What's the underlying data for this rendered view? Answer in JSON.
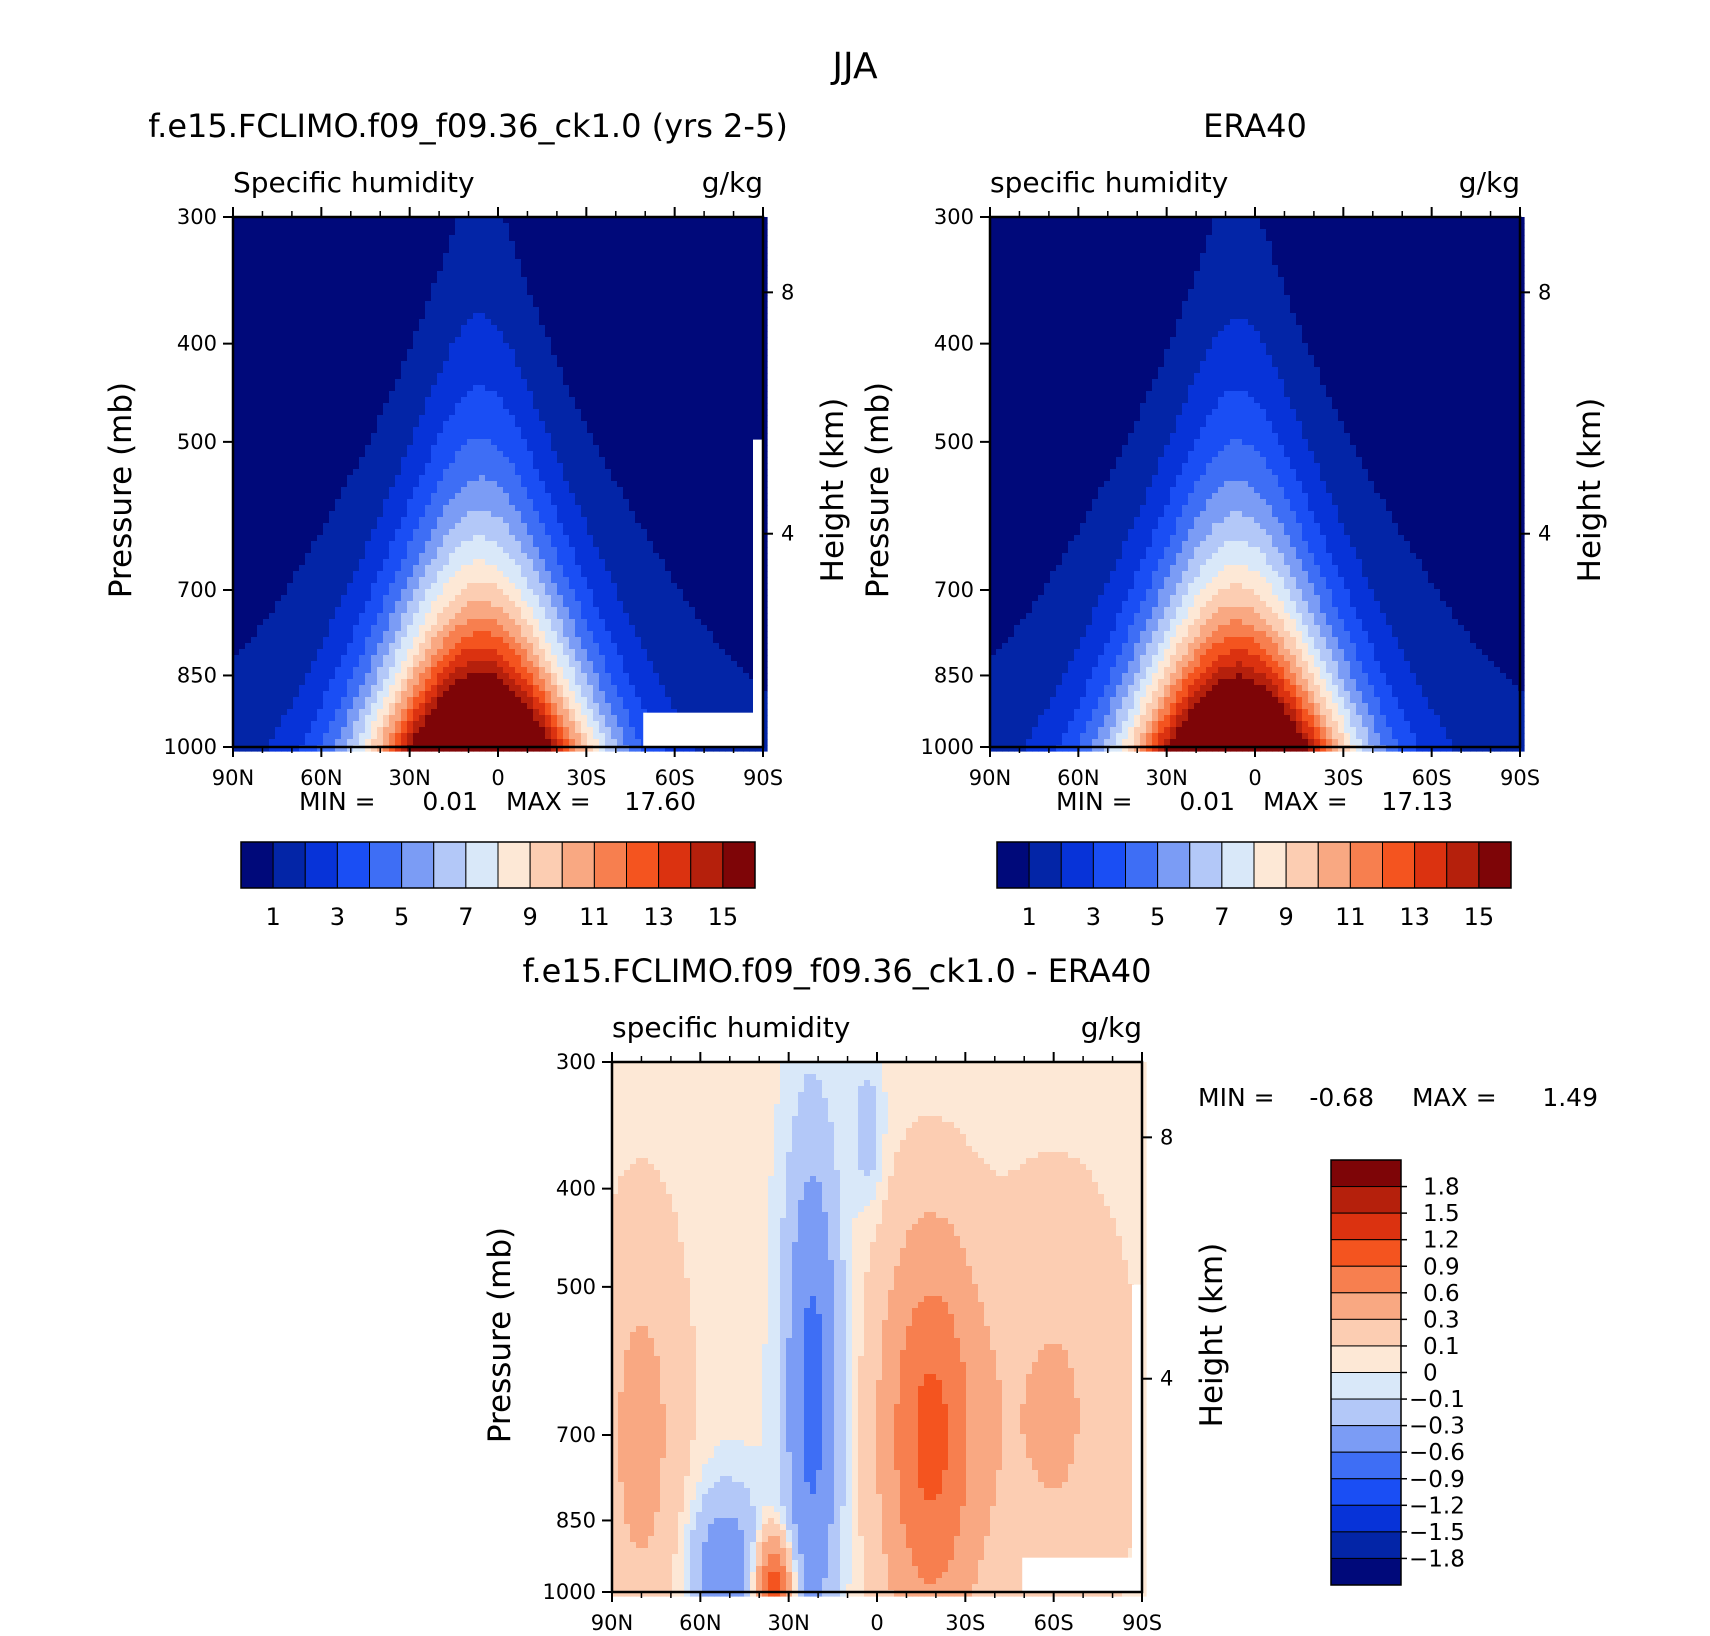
{
  "figure_title": "JJA",
  "palettes": {
    "humidity": [
      "#00097a",
      "#0325a7",
      "#0733d8",
      "#1a4ef4",
      "#3e6ef5",
      "#7b9cf5",
      "#b3c8f8",
      "#d9e8f9",
      "#fde8d6",
      "#fccdb2",
      "#f9a882",
      "#f77f4f",
      "#f4541f",
      "#db3210",
      "#b5200c",
      "#7e0507"
    ],
    "difference": [
      "#00097a",
      "#0325a7",
      "#0733d8",
      "#1a4ef4",
      "#3e6ef5",
      "#7b9cf5",
      "#b3c8f8",
      "#d9e8f9",
      "#fde8d6",
      "#fccdb2",
      "#f9a882",
      "#f77f4f",
      "#f4541f",
      "#db3210",
      "#b5200c",
      "#7e0507"
    ]
  },
  "icons": [
    "colorbar-swatch"
  ],
  "chart_data": [
    {
      "id": "model",
      "type": "contour",
      "title": "f.e15.FCLIMO.f09_f09.36_ck1.0 (yrs 2-5)",
      "left_label": "Specific humidity",
      "right_label": "g/kg",
      "ylabel": "Pressure (mb)",
      "y2label": "Height (km)",
      "x_ticks": [
        "90N",
        "60N",
        "30N",
        "0",
        "30S",
        "60S",
        "90S"
      ],
      "x_range": [
        -90,
        90
      ],
      "y_ticks": [
        "300",
        "400",
        "500",
        "700",
        "850",
        "1000"
      ],
      "y_range_mb": [
        1000,
        300
      ],
      "y2_ticks": [
        "8",
        "4"
      ],
      "stats": {
        "min_label": "MIN =",
        "min": "0.01",
        "max_label": "MAX =",
        "max": "17.60"
      },
      "peak_latitude": 6,
      "peak_value_g_per_kg": 17.6,
      "masked_region": {
        "lat_from": -50,
        "lat_to": -90,
        "pressure_from_mb": 925,
        "pressure_to_mb": 1000
      },
      "colorbar": {
        "orientation": "horizontal",
        "levels": [
          1,
          2,
          3,
          4,
          5,
          6,
          7,
          8,
          9,
          10,
          11,
          12,
          13,
          14,
          15
        ],
        "tick_labels": [
          "1",
          "3",
          "5",
          "7",
          "9",
          "11",
          "13",
          "15"
        ]
      }
    },
    {
      "id": "obs",
      "type": "contour",
      "title": "ERA40",
      "left_label": "specific humidity",
      "right_label": "g/kg",
      "ylabel": "Pressure (mb)",
      "y2label": "Height (km)",
      "x_ticks": [
        "90N",
        "60N",
        "30N",
        "0",
        "30S",
        "60S",
        "90S"
      ],
      "x_range": [
        -90,
        90
      ],
      "y_ticks": [
        "300",
        "400",
        "500",
        "700",
        "850",
        "1000"
      ],
      "y_range_mb": [
        1000,
        300
      ],
      "y2_ticks": [
        "8",
        "4"
      ],
      "stats": {
        "min_label": "MIN =",
        "min": "0.01",
        "max_label": "MAX =",
        "max": "17.13"
      },
      "peak_latitude": 6,
      "peak_value_g_per_kg": 17.13,
      "colorbar": {
        "orientation": "horizontal",
        "levels": [
          1,
          2,
          3,
          4,
          5,
          6,
          7,
          8,
          9,
          10,
          11,
          12,
          13,
          14,
          15
        ],
        "tick_labels": [
          "1",
          "3",
          "5",
          "7",
          "9",
          "11",
          "13",
          "15"
        ]
      }
    },
    {
      "id": "diff",
      "type": "contour",
      "title": "f.e15.FCLIMO.f09_f09.36_ck1.0 - ERA40",
      "left_label": "specific humidity",
      "right_label": "g/kg",
      "ylabel": "Pressure (mb)",
      "y2label": "Height (km)",
      "x_ticks": [
        "90N",
        "60N",
        "30N",
        "0",
        "30S",
        "60S",
        "90S"
      ],
      "x_range": [
        -90,
        90
      ],
      "y_ticks": [
        "300",
        "400",
        "500",
        "700",
        "850",
        "1000"
      ],
      "y_range_mb": [
        1000,
        300
      ],
      "y2_ticks": [
        "8",
        "4"
      ],
      "stats": {
        "min_label": "MIN =",
        "min": "-0.68",
        "max_label": "MAX =",
        "max": "1.49"
      },
      "colorbar": {
        "orientation": "vertical",
        "levels": [
          -1.8,
          -1.5,
          -1.2,
          -0.9,
          -0.6,
          -0.3,
          -0.1,
          0,
          0.1,
          0.3,
          0.6,
          0.9,
          1.2,
          1.5,
          1.8
        ],
        "tick_labels": [
          "1.8",
          "1.5",
          "1.2",
          "0.9",
          "0.6",
          "0.3",
          "0.1",
          "0",
          "-0.1",
          "-0.3",
          "-0.6",
          "-0.9",
          "-1.2",
          "-1.5",
          "-1.8"
        ]
      }
    }
  ]
}
